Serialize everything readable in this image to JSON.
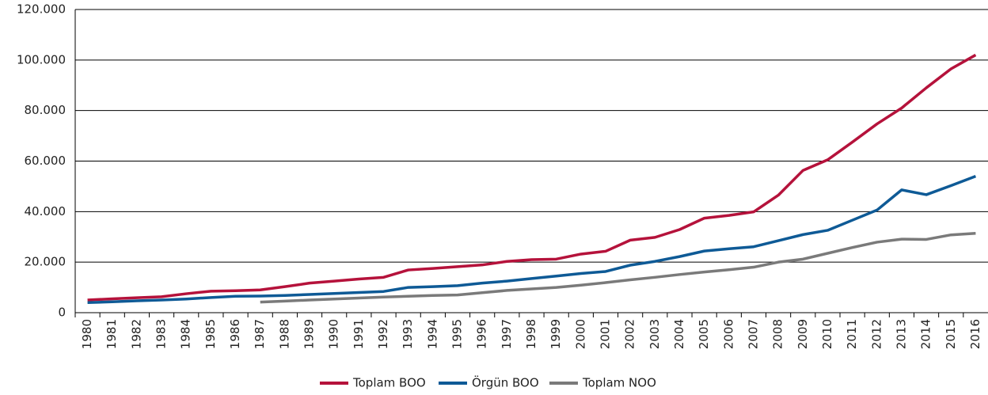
{
  "chart_data": {
    "type": "line",
    "categories": [
      "1980",
      "1981",
      "1982",
      "1983",
      "1984",
      "1985",
      "1986",
      "1987",
      "1988",
      "1989",
      "1990",
      "1991",
      "1992",
      "1993",
      "1994",
      "1995",
      "1996",
      "1997",
      "1998",
      "1999",
      "2000",
      "2001",
      "2002",
      "2003",
      "2004",
      "2005",
      "2006",
      "2007",
      "2008",
      "2009",
      "2010",
      "2011",
      "2012",
      "2013",
      "2014",
      "2015",
      "2016"
    ],
    "series": [
      {
        "name": "Toplam BOO",
        "color": "#b5123b",
        "values": [
          5000,
          5500,
          5900,
          6300,
          7500,
          8500,
          8700,
          9000,
          10300,
          11700,
          12500,
          13300,
          14000,
          16900,
          17500,
          18200,
          18900,
          20300,
          21000,
          21200,
          23200,
          24300,
          28700,
          29800,
          32900,
          37400,
          38500,
          39900,
          46500,
          56300,
          60500,
          67500,
          74700,
          81000,
          89000,
          96500,
          102000
        ]
      },
      {
        "name": "Örgün BOO",
        "color": "#0e5a96",
        "values": [
          4000,
          4300,
          4700,
          5000,
          5400,
          6000,
          6500,
          6600,
          6800,
          7200,
          7600,
          8000,
          8400,
          10000,
          10300,
          10700,
          11700,
          12500,
          13500,
          14500,
          15500,
          16300,
          18800,
          20300,
          22200,
          24400,
          25300,
          26100,
          28500,
          30900,
          32600,
          36600,
          40600,
          48600,
          46700,
          50300,
          54000
        ]
      },
      {
        "name": "Toplam NOO",
        "color": "#7a7a7a",
        "values": [
          null,
          null,
          null,
          null,
          null,
          null,
          null,
          4200,
          4600,
          5000,
          5400,
          5800,
          6200,
          6500,
          6800,
          7000,
          7900,
          8800,
          9400,
          10000,
          10900,
          11900,
          13000,
          14000,
          15100,
          16100,
          17000,
          18000,
          20000,
          21200,
          23500,
          25800,
          27900,
          29100,
          29000,
          30800,
          31400
        ]
      }
    ],
    "ylim": [
      0,
      120000
    ],
    "yticks": [
      0,
      {
        "value": 20000,
        "label": "20.000"
      },
      {
        "value": 40000,
        "label": "40.000"
      },
      {
        "value": 60000,
        "label": "60.000"
      },
      {
        "value": 80000,
        "label": "80.000"
      },
      {
        "value": 100000,
        "label": "100.000"
      },
      {
        "value": 120000,
        "label": "120.000"
      }
    ],
    "grid": true,
    "legend": "bottom"
  }
}
